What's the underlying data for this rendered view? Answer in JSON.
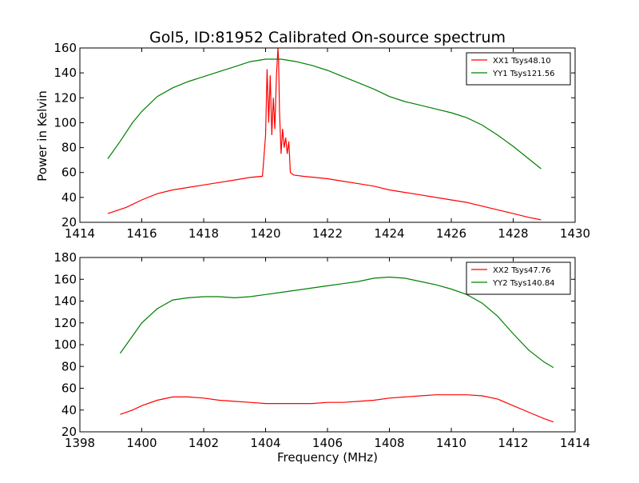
{
  "figure": {
    "title": "Gol5, ID:81952 Calibrated On-source spectrum",
    "ylabel": "Power in Kelvin",
    "xlabel": "Frequency (MHz)"
  },
  "chart_data": [
    {
      "type": "line",
      "xlim": [
        1414,
        1430
      ],
      "ylim": [
        20,
        160
      ],
      "xticks": [
        1414,
        1416,
        1418,
        1420,
        1422,
        1424,
        1426,
        1428,
        1430
      ],
      "yticks": [
        20,
        40,
        60,
        80,
        100,
        120,
        140,
        160
      ],
      "ylabel": "Power in Kelvin",
      "legend_position": "top-right",
      "series": [
        {
          "name": "XX1 Tsys48.10",
          "color": "#ff0000",
          "x": [
            1414.9,
            1415.5,
            1416.0,
            1416.5,
            1417.0,
            1417.5,
            1418.0,
            1418.5,
            1419.0,
            1419.5,
            1419.9,
            1420.0,
            1420.05,
            1420.1,
            1420.15,
            1420.2,
            1420.25,
            1420.3,
            1420.35,
            1420.4,
            1420.42,
            1420.45,
            1420.5,
            1420.55,
            1420.6,
            1420.65,
            1420.7,
            1420.75,
            1420.8,
            1420.9,
            1421.2,
            1421.6,
            1422.0,
            1422.5,
            1423.0,
            1423.5,
            1424.0,
            1424.5,
            1425.0,
            1425.5,
            1426.0,
            1426.5,
            1427.0,
            1427.5,
            1428.0,
            1428.5,
            1428.9
          ],
          "y": [
            27,
            32,
            38,
            43,
            46,
            48,
            50,
            52,
            54,
            56,
            57,
            90,
            143,
            100,
            138,
            90,
            120,
            95,
            138,
            162,
            150,
            110,
            75,
            95,
            80,
            88,
            75,
            85,
            60,
            58,
            57,
            56,
            55,
            53,
            51,
            49,
            46,
            44,
            42,
            40,
            38,
            36,
            33,
            30,
            27,
            24,
            22
          ]
        },
        {
          "name": "YY1 Tsys121.56",
          "color": "#008000",
          "x": [
            1414.9,
            1415.3,
            1415.7,
            1416.0,
            1416.5,
            1417.0,
            1417.5,
            1418.0,
            1418.5,
            1419.0,
            1419.5,
            1420.0,
            1420.5,
            1421.0,
            1421.5,
            1422.0,
            1422.5,
            1423.0,
            1423.5,
            1424.0,
            1424.5,
            1425.0,
            1425.5,
            1426.0,
            1426.5,
            1427.0,
            1427.5,
            1428.0,
            1428.5,
            1428.9
          ],
          "y": [
            71,
            85,
            100,
            109,
            121,
            128,
            133,
            137,
            141,
            145,
            149,
            151,
            151,
            149,
            146,
            142,
            137,
            132,
            127,
            121,
            117,
            114,
            111,
            108,
            104,
            98,
            90,
            81,
            71,
            63
          ]
        }
      ]
    },
    {
      "type": "line",
      "xlim": [
        1398,
        1414
      ],
      "ylim": [
        20,
        180
      ],
      "xticks": [
        1398,
        1400,
        1402,
        1404,
        1406,
        1408,
        1410,
        1412,
        1414
      ],
      "yticks": [
        20,
        40,
        60,
        80,
        100,
        120,
        140,
        160,
        180
      ],
      "xlabel": "Frequency (MHz)",
      "legend_position": "top-right",
      "series": [
        {
          "name": "XX2 Tsys47.76",
          "color": "#ff0000",
          "x": [
            1399.3,
            1399.7,
            1400.0,
            1400.5,
            1401.0,
            1401.5,
            1402.0,
            1402.5,
            1403.0,
            1403.5,
            1404.0,
            1404.5,
            1405.0,
            1405.5,
            1406.0,
            1406.5,
            1407.0,
            1407.5,
            1408.0,
            1408.5,
            1409.0,
            1409.5,
            1410.0,
            1410.5,
            1411.0,
            1411.5,
            1412.0,
            1412.5,
            1413.0,
            1413.3
          ],
          "y": [
            36,
            40,
            44,
            49,
            52,
            52,
            51,
            49,
            48,
            47,
            46,
            46,
            46,
            46,
            47,
            47,
            48,
            49,
            51,
            52,
            53,
            54,
            54,
            54,
            53,
            50,
            44,
            38,
            32,
            29
          ]
        },
        {
          "name": "YY2 Tsys140.84",
          "color": "#008000",
          "x": [
            1399.3,
            1399.7,
            1400.0,
            1400.5,
            1401.0,
            1401.5,
            1402.0,
            1402.5,
            1403.0,
            1403.5,
            1404.0,
            1404.5,
            1405.0,
            1405.5,
            1406.0,
            1406.5,
            1407.0,
            1407.5,
            1408.0,
            1408.5,
            1409.0,
            1409.5,
            1410.0,
            1410.5,
            1411.0,
            1411.5,
            1412.0,
            1412.5,
            1413.0,
            1413.3
          ],
          "y": [
            92,
            108,
            120,
            133,
            141,
            143,
            144,
            144,
            143,
            144,
            146,
            148,
            150,
            152,
            154,
            156,
            158,
            161,
            162,
            161,
            158,
            155,
            151,
            146,
            138,
            126,
            110,
            95,
            84,
            79
          ]
        }
      ]
    }
  ]
}
